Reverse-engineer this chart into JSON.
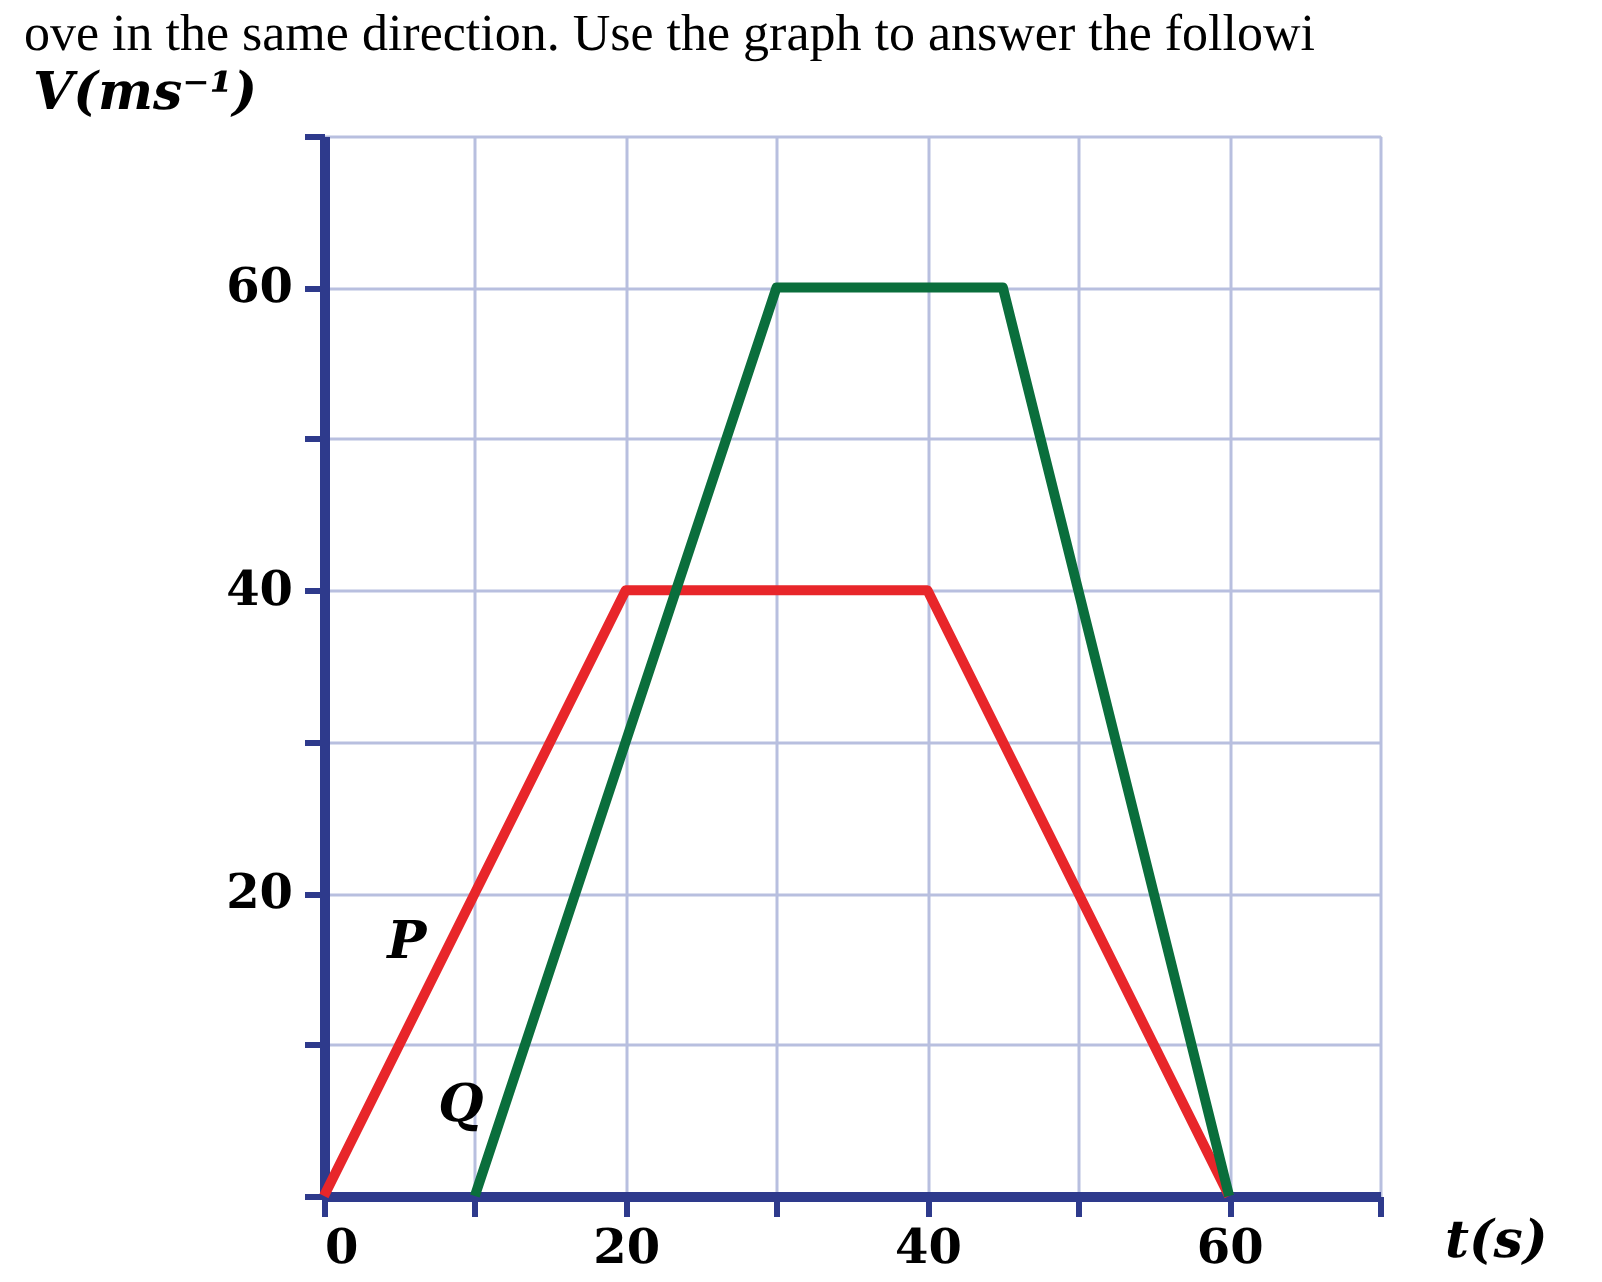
{
  "chart_data": {
    "type": "line",
    "xlabel": "t(s)",
    "ylabel": "V(ms⁻¹)",
    "xlim": [
      0,
      70
    ],
    "ylim": [
      0,
      70
    ],
    "xticks": [
      0,
      {
        "value": 10,
        "label": null
      },
      20,
      {
        "value": 30,
        "label": null
      },
      40,
      {
        "value": 50,
        "label": null
      },
      60,
      {
        "value": 70,
        "label": null
      }
    ],
    "yticks": [
      {
        "value": 0,
        "label": null
      },
      {
        "value": 10,
        "label": null
      },
      20,
      {
        "value": 30,
        "label": null
      },
      40,
      {
        "value": 50,
        "label": null
      },
      60,
      {
        "value": 70,
        "label": null
      }
    ],
    "grid": true,
    "marker": "none",
    "line_style": "solid",
    "series": [
      {
        "name": "P",
        "color": "#e8262a",
        "x": [
          0,
          20,
          40,
          60
        ],
        "values": [
          0,
          40,
          40,
          0
        ]
      },
      {
        "name": "Q",
        "color": "#0a6e3c",
        "x": [
          10,
          30,
          45,
          60
        ],
        "values": [
          0,
          60,
          60,
          0
        ]
      }
    ],
    "annotations": [
      "ove in the same direction. Use the graph to answer the followi"
    ]
  }
}
